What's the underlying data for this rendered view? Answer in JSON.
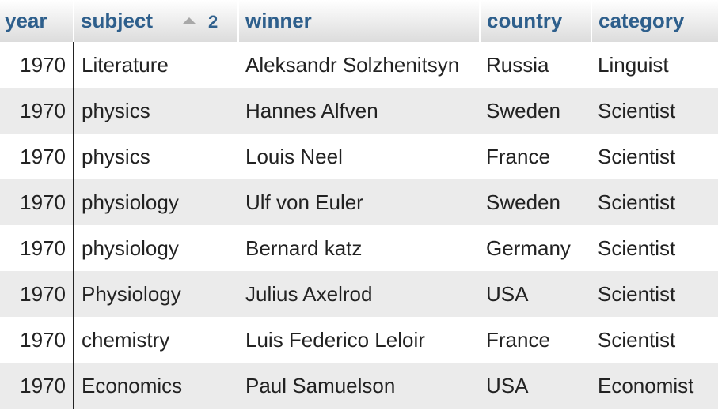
{
  "columns": {
    "year": "year",
    "subject": "subject",
    "winner": "winner",
    "country": "country",
    "category": "category"
  },
  "sort": {
    "column": "subject",
    "direction": "ascending",
    "icon": "sort-ascending-icon",
    "order_label": "2"
  },
  "rows": [
    {
      "year": "1970",
      "subject": "Literature",
      "winner": "Aleksandr Solzhenitsyn",
      "country": "Russia",
      "category": "Linguist"
    },
    {
      "year": "1970",
      "subject": "physics",
      "winner": "Hannes Alfven",
      "country": "Sweden",
      "category": "Scientist"
    },
    {
      "year": "1970",
      "subject": "physics",
      "winner": "Louis Neel",
      "country": "France",
      "category": "Scientist"
    },
    {
      "year": "1970",
      "subject": "physiology",
      "winner": "Ulf von Euler",
      "country": "Sweden",
      "category": "Scientist"
    },
    {
      "year": "1970",
      "subject": "physiology",
      "winner": "Bernard katz",
      "country": "Germany",
      "category": "Scientist"
    },
    {
      "year": "1970",
      "subject": "Physiology",
      "winner": "Julius Axelrod",
      "country": "USA",
      "category": "Scientist"
    },
    {
      "year": "1970",
      "subject": "chemistry",
      "winner": "Luis Federico Leloir",
      "country": "France",
      "category": "Scientist"
    },
    {
      "year": "1970",
      "subject": "Economics",
      "winner": "Paul Samuelson",
      "country": "USA",
      "category": "Economist"
    }
  ],
  "colors": {
    "header_text": "#2e5f8c",
    "row_alt": "#ebebeb",
    "cell_text": "#222222"
  }
}
